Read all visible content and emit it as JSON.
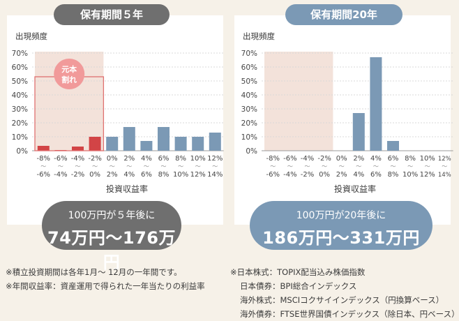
{
  "left_panel": {
    "title": "保有期間５年",
    "freq_label": "出現頻度",
    "xlabel": "投資収益率",
    "badge": [
      "元本",
      "割れ"
    ],
    "result_line1": "100万円が５年後に",
    "result_line2": "74万円～176万円"
  },
  "right_panel": {
    "title": "保有期間20年",
    "freq_label": "出現頻度",
    "xlabel": "投資収益率",
    "result_line1": "100万円が20年後に",
    "result_line2": "186万円～331万円"
  },
  "notes_left": [
    "※積立投資期間は各年1月～ 12月の一年間です。",
    "※年間収益率：資産運用で得られた一年当たりの利益率"
  ],
  "notes_right": [
    "※日本株式：TOPIX配当込み株価指数",
    "日本債券：BPI総合インデックス",
    "海外株式：MSCIコクサイインデックス（円換算ベース）",
    "海外債券：FTSE世界国債インデックス（除日本、円ベース）"
  ],
  "colors": {
    "loss_bar": "#d24446",
    "gain_bar": "#7b99b5",
    "loss_region": "#f3e2da",
    "loss_border": "#e07070",
    "badge": "#f19a9a"
  },
  "chart_data": [
    {
      "type": "bar",
      "title": "保有期間５年",
      "ylabel": "出現頻度",
      "xlabel": "投資収益率",
      "ylim": [
        0,
        70
      ],
      "yticks": [
        "0%",
        "10%",
        "20%",
        "30%",
        "40%",
        "50%",
        "60%",
        "70%"
      ],
      "categories": [
        [
          "-8%",
          "-6%"
        ],
        [
          "-6%",
          "-4%"
        ],
        [
          "-4%",
          "-2%"
        ],
        [
          "-2%",
          "0%"
        ],
        [
          "0%",
          "2%"
        ],
        [
          "2%",
          "4%"
        ],
        [
          "4%",
          "6%"
        ],
        [
          "6%",
          "8%"
        ],
        [
          "8%",
          "10%"
        ],
        [
          "10%",
          "12%"
        ],
        [
          "12%",
          "14%"
        ]
      ],
      "values": [
        3.5,
        0.5,
        3,
        10,
        10,
        17,
        7,
        17,
        10,
        10,
        13
      ],
      "loss_bins": 4
    },
    {
      "type": "bar",
      "title": "保有期間20年",
      "ylabel": "出現頻度",
      "xlabel": "投資収益率",
      "ylim": [
        0,
        70
      ],
      "yticks": [
        "0%",
        "10%",
        "20%",
        "30%",
        "40%",
        "50%",
        "60%",
        "70%"
      ],
      "categories": [
        [
          "-8%",
          "-6%"
        ],
        [
          "-6%",
          "-4%"
        ],
        [
          "-4%",
          "-2%"
        ],
        [
          "-2%",
          "0%"
        ],
        [
          "0%",
          "2%"
        ],
        [
          "2%",
          "4%"
        ],
        [
          "4%",
          "6%"
        ],
        [
          "6%",
          "8%"
        ],
        [
          "8%",
          "10%"
        ],
        [
          "10%",
          "12%"
        ],
        [
          "12%",
          "14%"
        ]
      ],
      "values": [
        0,
        0,
        0,
        0,
        0,
        27,
        67,
        7,
        0,
        0,
        0
      ],
      "loss_bins": 4
    }
  ]
}
